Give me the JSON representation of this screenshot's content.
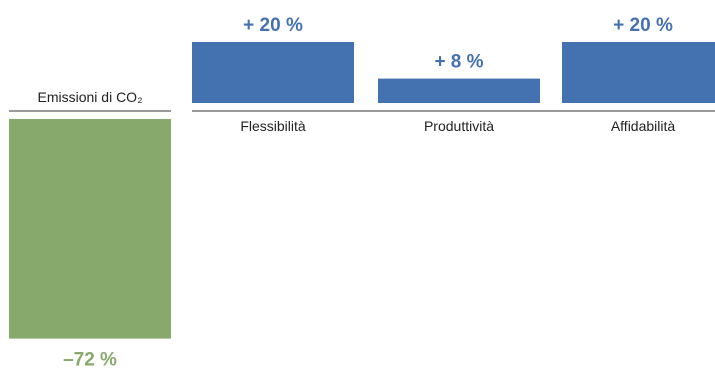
{
  "chart_data": {
    "type": "bar",
    "title": "",
    "xlabel": "",
    "ylabel": "",
    "categories": [
      "Emissioni di CO₂",
      "Flessibilità",
      "Produttività",
      "Affidabilità"
    ],
    "values": [
      -72,
      20,
      8,
      20
    ],
    "value_labels": [
      "–72 %",
      "+ 20 %",
      "+ 8 %",
      "+ 20 %"
    ],
    "unit": "%",
    "colors": {
      "negative": "#87a96b",
      "positive": "#4472b0"
    },
    "grid": false,
    "legend": "none"
  }
}
